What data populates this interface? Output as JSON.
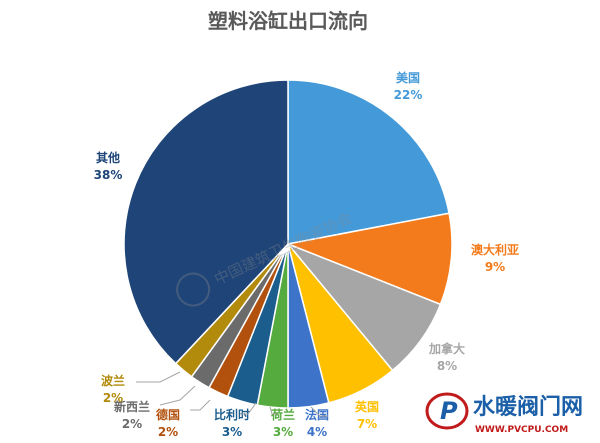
{
  "chart_data": {
    "type": "pie",
    "title": "塑料浴缸出口流向",
    "slices": [
      {
        "name": "美国",
        "value": 22,
        "pct": "22%",
        "color": "#4499d8"
      },
      {
        "name": "澳大利亚",
        "value": 9,
        "pct": "9%",
        "color": "#f47b1b"
      },
      {
        "name": "加拿大",
        "value": 8,
        "pct": "8%",
        "color": "#a6a6a6"
      },
      {
        "name": "英国",
        "value": 7,
        "pct": "7%",
        "color": "#ffc000"
      },
      {
        "name": "法国",
        "value": 4,
        "pct": "4%",
        "color": "#3d74c9"
      },
      {
        "name": "荷兰",
        "value": 3,
        "pct": "3%",
        "color": "#56ab3e"
      },
      {
        "name": "比利时",
        "value": 3,
        "pct": "3%",
        "color": "#1b5e8e"
      },
      {
        "name": "德国",
        "value": 2,
        "pct": "2%",
        "color": "#b2510d"
      },
      {
        "name": "新西兰",
        "value": 2,
        "pct": "2%",
        "color": "#6b6b6b"
      },
      {
        "name": "波兰",
        "value": 2,
        "pct": "2%",
        "color": "#b28a0c"
      },
      {
        "name": "其他",
        "value": 38,
        "pct": "38%",
        "color": "#1e4478"
      }
    ]
  },
  "watermark": {
    "text": "中国建筑卫生陶瓷协会"
  },
  "logo": {
    "brand": "水暖阀门网",
    "url": "WWW.PVCPU.COM",
    "colors": {
      "brand": "#1a5fa8",
      "accent": "#c01a1a"
    }
  }
}
